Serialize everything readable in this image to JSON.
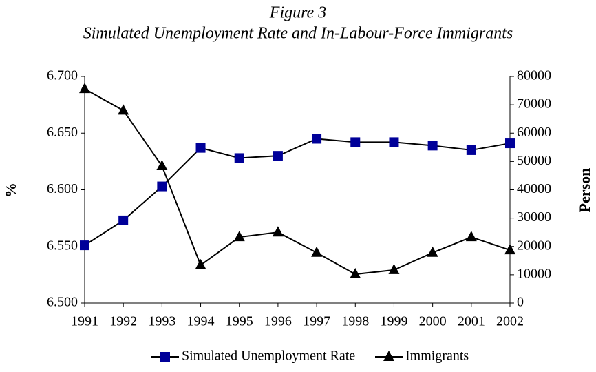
{
  "chart_data": {
    "type": "line",
    "title": "Figure 3",
    "subtitle": "Simulated Unemployment Rate and In-Labour-Force Immigrants",
    "y_label": "%",
    "y2_label": "Person",
    "categories": [
      "1991",
      "1992",
      "1993",
      "1994",
      "1995",
      "1996",
      "1997",
      "1998",
      "1999",
      "2000",
      "2001",
      "2002"
    ],
    "series": [
      {
        "name": "Simulated Unemployment Rate",
        "color": "#000099",
        "marker": "square",
        "values": [
          6.551,
          6.573,
          6.603,
          6.637,
          6.628,
          6.63,
          6.645,
          6.642,
          6.642,
          6.639,
          6.635,
          6.641
        ]
      },
      {
        "name": "Immigrants",
        "color": "#000000",
        "marker": "triangle",
        "axis": "y2",
        "values": [
          75600,
          68000,
          48400,
          13400,
          23300,
          25000,
          17800,
          10200,
          11700,
          17800,
          23300,
          18700
        ]
      }
    ],
    "ylim": [
      6.5,
      6.7
    ],
    "yticks": [
      {
        "value": 6.5,
        "label": "6.500"
      },
      {
        "value": 6.55,
        "label": "6.550"
      },
      {
        "value": 6.6,
        "label": "6.600"
      },
      {
        "value": 6.65,
        "label": "6.650"
      },
      {
        "value": 6.7,
        "label": "6.700"
      }
    ],
    "y2lim": [
      0,
      80000
    ],
    "y2ticks": [
      0,
      10000,
      20000,
      30000,
      40000,
      50000,
      60000,
      70000,
      80000
    ],
    "legend": "bottom"
  }
}
